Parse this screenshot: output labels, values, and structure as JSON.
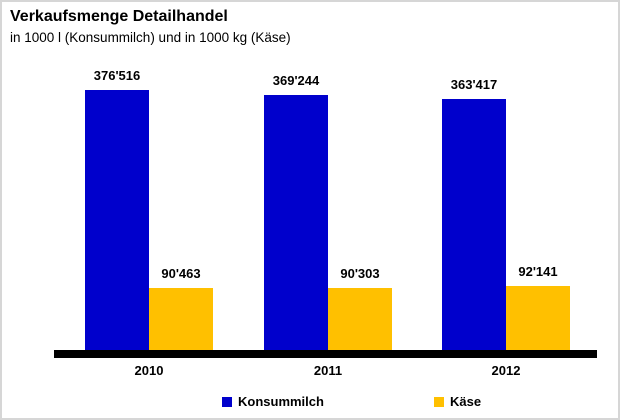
{
  "header": {
    "title": "Verkaufsmenge Detailhandel",
    "subtitle": "in 1000 l (Konsummilch) und in 1000 kg (Käse)"
  },
  "chart_data": {
    "type": "bar",
    "title": "Verkaufsmenge Detailhandel",
    "subtitle": "in 1000 l (Konsummilch) und in 1000 kg (Käse)",
    "categories": [
      "2010",
      "2011",
      "2012"
    ],
    "series": [
      {
        "name": "Konsummilch",
        "color": "#0000CC",
        "values": [
          376516,
          369244,
          363417
        ],
        "labels": [
          "376'516",
          "369'244",
          "363'417"
        ]
      },
      {
        "name": "Käse",
        "color": "#FFC000",
        "values": [
          90463,
          90303,
          92141
        ],
        "labels": [
          "90'463",
          "90'303",
          "92'141"
        ]
      }
    ],
    "xlabel": "",
    "ylabel": "",
    "ylim": [
      0,
      376516
    ],
    "grid": false,
    "legend_position": "bottom",
    "axis_color": "#000000"
  }
}
